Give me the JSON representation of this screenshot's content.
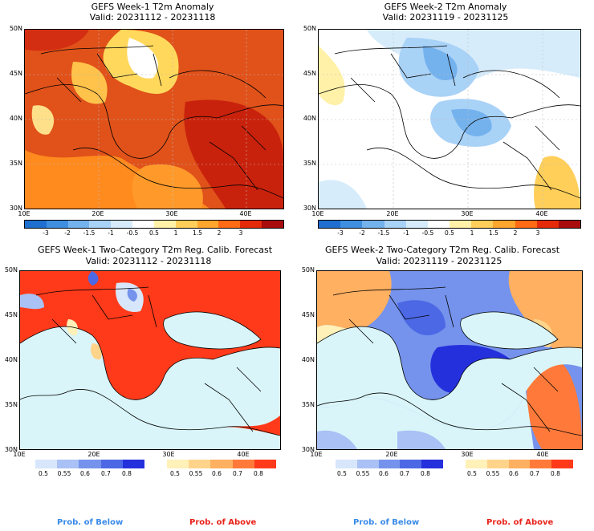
{
  "panels": [
    {
      "line1": "GEFS Week-1 T2m Anomaly",
      "line2": "Valid: 20231112 - 20231118"
    },
    {
      "line1": "GEFS Week-2 T2m Anomaly",
      "line2": "Valid: 20231119 - 20231125"
    },
    {
      "line1": "GEFS Week-1 Two-Category T2m Reg. Calib. Forecast",
      "line2": "Valid: 20231112 - 20231118"
    },
    {
      "line1": "GEFS Week-2 Two-Category T2m Reg. Calib. Forecast",
      "line2": "Valid: 20231119 - 20231125"
    }
  ],
  "lat_labels": [
    "50N",
    "45N",
    "40N",
    "35N",
    "30N"
  ],
  "lon_labels": [
    "10E",
    "20E",
    "30E",
    "40E"
  ],
  "anomaly_colorbar": {
    "labels": [
      "-3",
      "-2",
      "-1.5",
      "-1",
      "-0.5",
      "0.5",
      "1",
      "1.5",
      "2",
      "3"
    ],
    "colors": [
      "#1e6fd0",
      "#3f8fe0",
      "#74b2ee",
      "#a9d2f7",
      "#d6ecfb",
      "#ffffff",
      "#fff1a8",
      "#ffcf5a",
      "#ffa62e",
      "#ff6a14",
      "#e52a0a",
      "#a80c0c"
    ]
  },
  "below_colorbar": {
    "labels": [
      "0.5",
      "0.55",
      "0.6",
      "0.7",
      "0.8"
    ],
    "colors": [
      "#d8e6fb",
      "#a9c1f4",
      "#7593ec",
      "#4c68e5",
      "#2530dd"
    ]
  },
  "above_colorbar": {
    "labels": [
      "0.5",
      "0.55",
      "0.6",
      "0.7",
      "0.8"
    ],
    "colors": [
      "#fff1b8",
      "#ffd48a",
      "#ffb061",
      "#ff7a3a",
      "#ff3a1a"
    ]
  },
  "legend": {
    "below": "Prob. of Below",
    "above": "Prob. of Above",
    "below_color": "#3a8ae8",
    "above_color": "#e8231a"
  },
  "colors": {
    "sea_prob": "#d9f5f9",
    "land_outline": "#000000"
  }
}
